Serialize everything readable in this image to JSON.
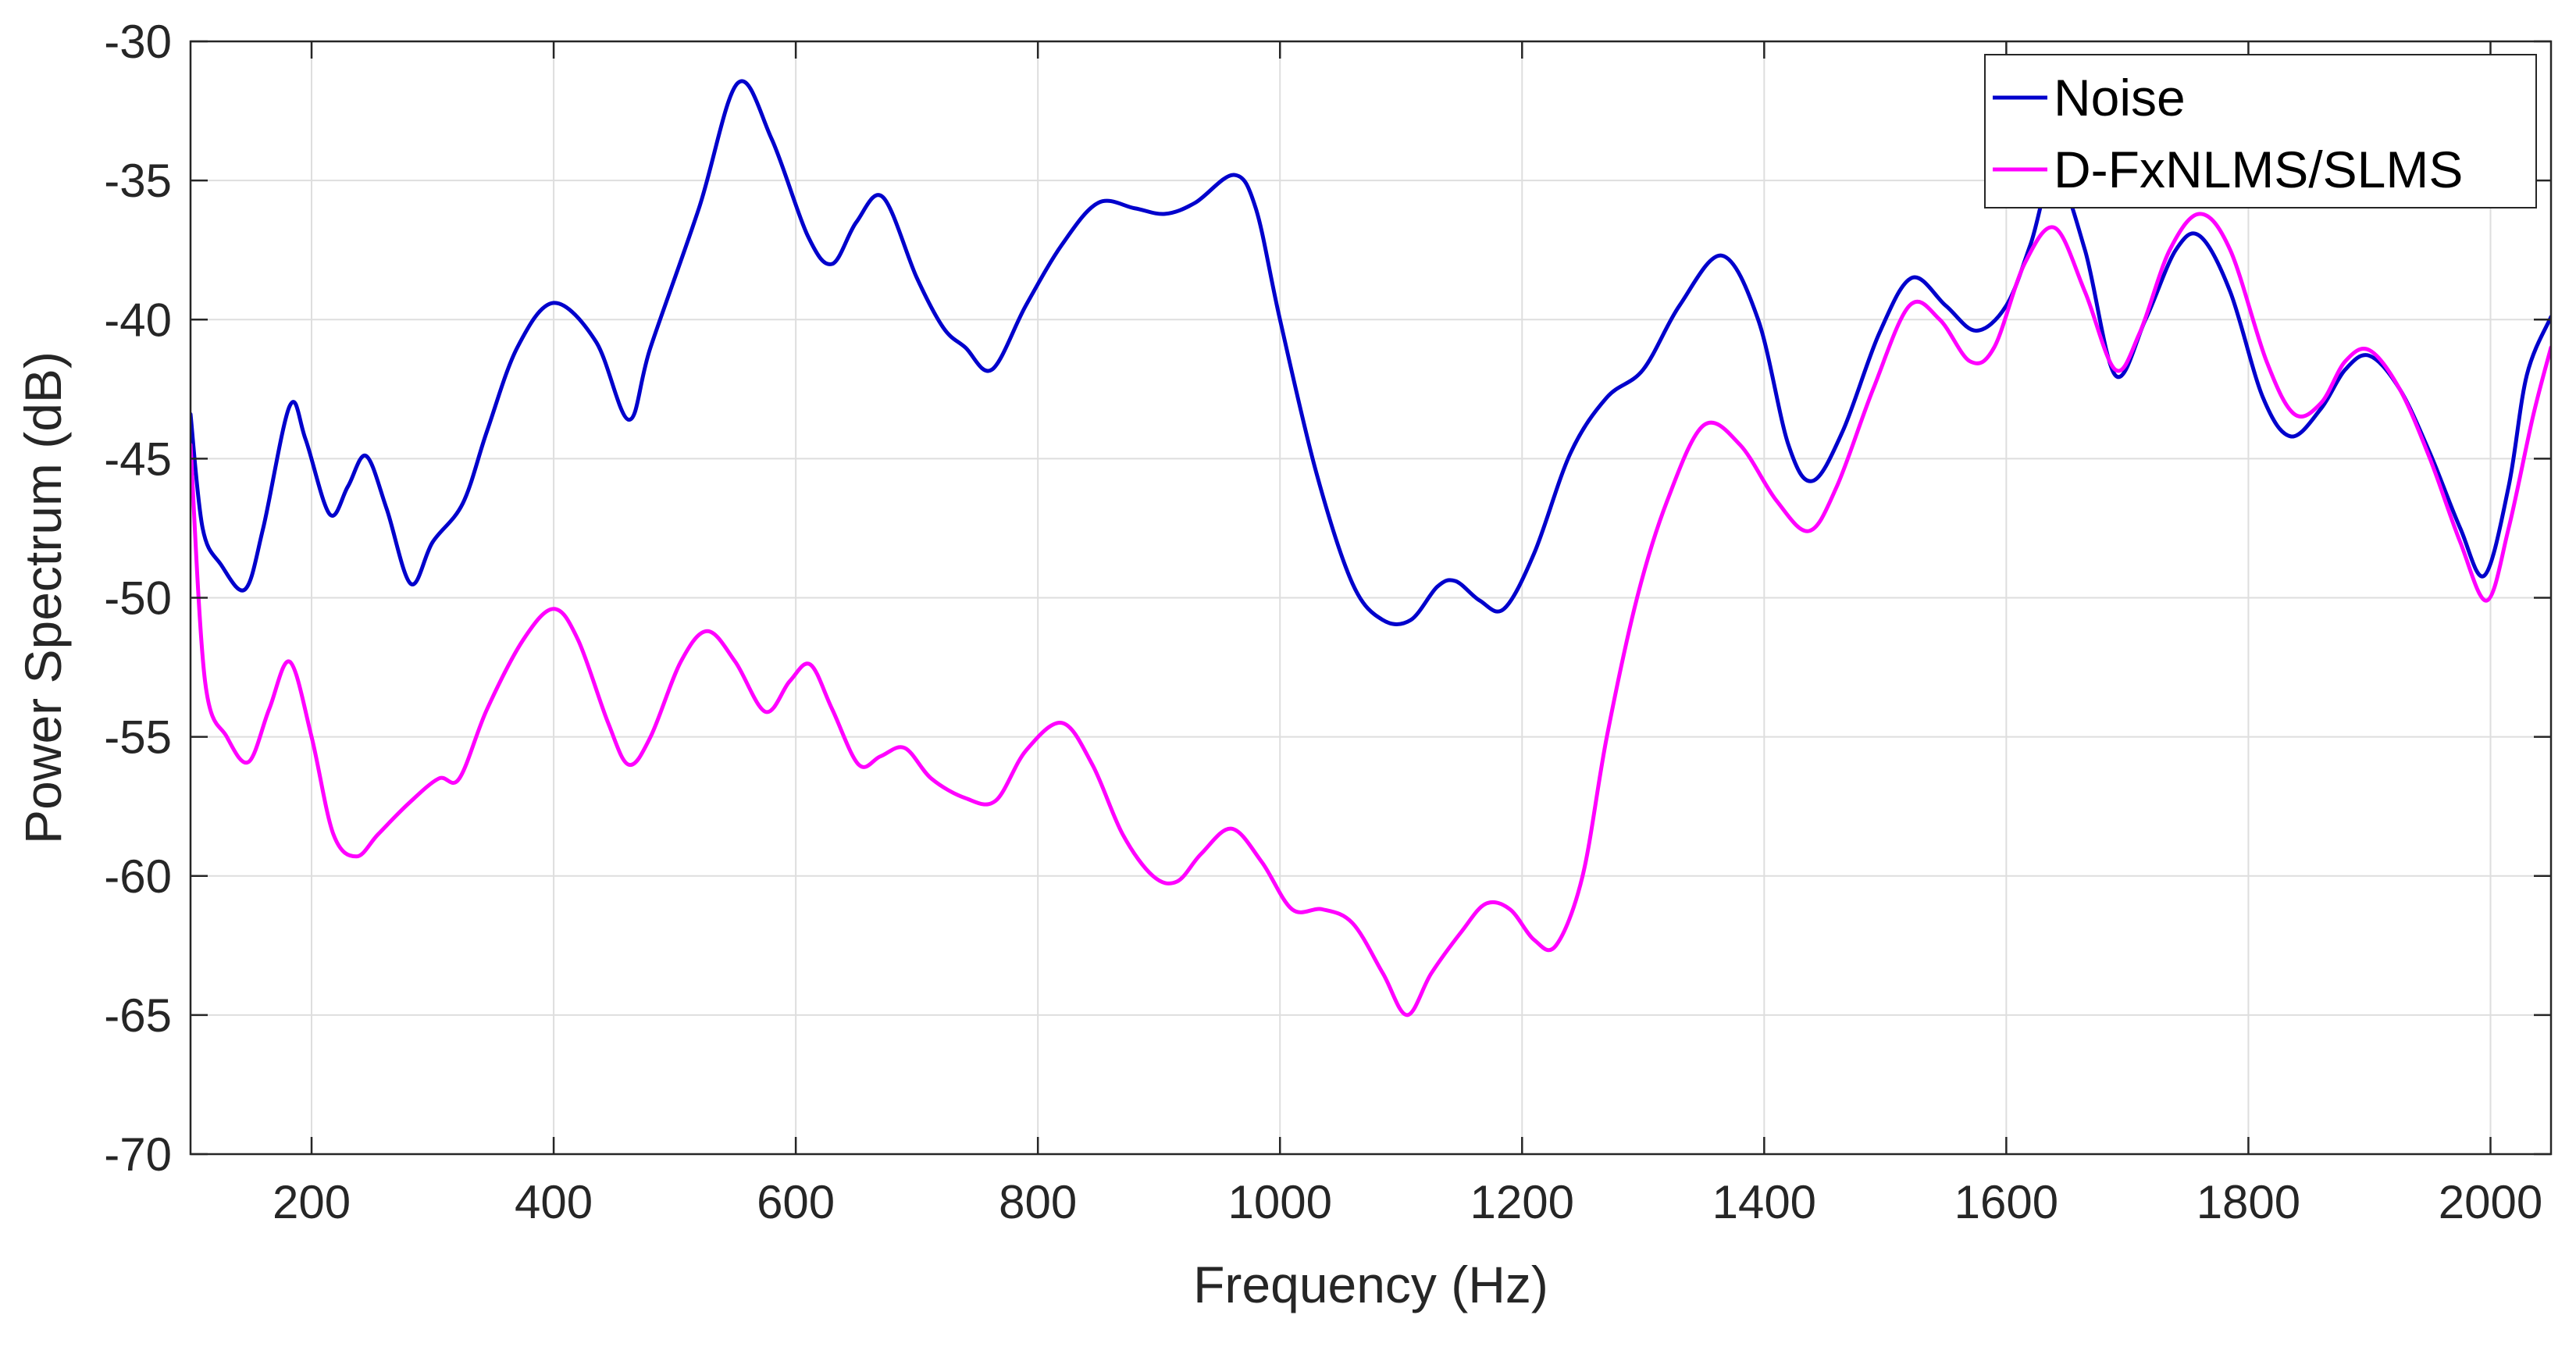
{
  "chart_data": {
    "type": "line",
    "title": "",
    "xlabel": "Frequency (Hz)",
    "ylabel": "Power Spectrum (dB)",
    "xlim": [
      100,
      2050
    ],
    "ylim": [
      -70,
      -30
    ],
    "xticks": [
      200,
      400,
      600,
      800,
      1000,
      1200,
      1400,
      1600,
      1800,
      2000
    ],
    "yticks": [
      -30,
      -35,
      -40,
      -45,
      -50,
      -55,
      -60,
      -65,
      -70
    ],
    "grid": true,
    "legend": {
      "position": "top-right"
    },
    "series": [
      {
        "name": "Noise",
        "color": "#0000cc",
        "points": [
          [
            100,
            -43.4
          ],
          [
            110,
            -47.5
          ],
          [
            125,
            -48.8
          ],
          [
            145,
            -49.7
          ],
          [
            160,
            -47.5
          ],
          [
            182,
            -43.1
          ],
          [
            195,
            -44.3
          ],
          [
            215,
            -47.0
          ],
          [
            230,
            -46.0
          ],
          [
            245,
            -44.9
          ],
          [
            262,
            -46.8
          ],
          [
            282,
            -49.5
          ],
          [
            300,
            -48.0
          ],
          [
            325,
            -46.6
          ],
          [
            345,
            -44.0
          ],
          [
            370,
            -41.0
          ],
          [
            400,
            -39.4
          ],
          [
            435,
            -40.8
          ],
          [
            462,
            -43.6
          ],
          [
            480,
            -41.0
          ],
          [
            520,
            -36.0
          ],
          [
            552,
            -31.5
          ],
          [
            580,
            -33.5
          ],
          [
            610,
            -37.0
          ],
          [
            630,
            -38.0
          ],
          [
            650,
            -36.5
          ],
          [
            672,
            -35.6
          ],
          [
            700,
            -38.5
          ],
          [
            722,
            -40.3
          ],
          [
            740,
            -41.0
          ],
          [
            762,
            -41.8
          ],
          [
            790,
            -39.5
          ],
          [
            820,
            -37.3
          ],
          [
            850,
            -35.8
          ],
          [
            880,
            -36.0
          ],
          [
            905,
            -36.2
          ],
          [
            930,
            -35.8
          ],
          [
            962,
            -34.8
          ],
          [
            980,
            -36.0
          ],
          [
            1000,
            -40.0
          ],
          [
            1030,
            -45.5
          ],
          [
            1060,
            -49.5
          ],
          [
            1085,
            -50.8
          ],
          [
            1108,
            -50.8
          ],
          [
            1130,
            -49.6
          ],
          [
            1145,
            -49.4
          ],
          [
            1165,
            -50.1
          ],
          [
            1185,
            -50.4
          ],
          [
            1210,
            -48.4
          ],
          [
            1240,
            -44.8
          ],
          [
            1270,
            -42.8
          ],
          [
            1300,
            -41.8
          ],
          [
            1330,
            -39.5
          ],
          [
            1365,
            -37.7
          ],
          [
            1395,
            -40.0
          ],
          [
            1420,
            -44.5
          ],
          [
            1440,
            -45.8
          ],
          [
            1465,
            -44.0
          ],
          [
            1495,
            -40.5
          ],
          [
            1522,
            -38.5
          ],
          [
            1550,
            -39.5
          ],
          [
            1575,
            -40.4
          ],
          [
            1600,
            -39.5
          ],
          [
            1620,
            -37.3
          ],
          [
            1640,
            -34.7
          ],
          [
            1665,
            -37.5
          ],
          [
            1690,
            -42.0
          ],
          [
            1715,
            -40.0
          ],
          [
            1740,
            -37.5
          ],
          [
            1760,
            -37.0
          ],
          [
            1785,
            -39.0
          ],
          [
            1812,
            -42.8
          ],
          [
            1835,
            -44.2
          ],
          [
            1860,
            -43.2
          ],
          [
            1880,
            -41.8
          ],
          [
            1900,
            -41.3
          ],
          [
            1925,
            -42.5
          ],
          [
            1950,
            -44.8
          ],
          [
            1975,
            -47.5
          ],
          [
            1995,
            -49.2
          ],
          [
            2015,
            -46.0
          ],
          [
            2030,
            -42.0
          ],
          [
            2050,
            -39.9
          ]
        ]
      },
      {
        "name": "D-FxNLMS/SLMS",
        "color": "#ff00ff",
        "points": [
          [
            100,
            -44.5
          ],
          [
            112,
            -53.0
          ],
          [
            130,
            -55.0
          ],
          [
            148,
            -55.9
          ],
          [
            165,
            -54.0
          ],
          [
            182,
            -52.3
          ],
          [
            200,
            -55.0
          ],
          [
            218,
            -58.5
          ],
          [
            237,
            -59.3
          ],
          [
            255,
            -58.5
          ],
          [
            280,
            -57.4
          ],
          [
            305,
            -56.5
          ],
          [
            322,
            -56.5
          ],
          [
            345,
            -54.0
          ],
          [
            375,
            -51.5
          ],
          [
            400,
            -50.4
          ],
          [
            420,
            -51.5
          ],
          [
            445,
            -54.5
          ],
          [
            462,
            -56.0
          ],
          [
            480,
            -55.0
          ],
          [
            505,
            -52.3
          ],
          [
            527,
            -51.2
          ],
          [
            550,
            -52.3
          ],
          [
            575,
            -54.1
          ],
          [
            595,
            -53.0
          ],
          [
            612,
            -52.4
          ],
          [
            630,
            -54.0
          ],
          [
            652,
            -56.0
          ],
          [
            670,
            -55.7
          ],
          [
            690,
            -55.4
          ],
          [
            712,
            -56.5
          ],
          [
            740,
            -57.2
          ],
          [
            765,
            -57.3
          ],
          [
            790,
            -55.5
          ],
          [
            820,
            -54.5
          ],
          [
            845,
            -56.0
          ],
          [
            870,
            -58.5
          ],
          [
            895,
            -60.0
          ],
          [
            915,
            -60.2
          ],
          [
            935,
            -59.2
          ],
          [
            960,
            -58.3
          ],
          [
            985,
            -59.5
          ],
          [
            1010,
            -61.2
          ],
          [
            1035,
            -61.2
          ],
          [
            1060,
            -61.7
          ],
          [
            1085,
            -63.5
          ],
          [
            1105,
            -65.0
          ],
          [
            1125,
            -63.5
          ],
          [
            1150,
            -62.0
          ],
          [
            1170,
            -61.0
          ],
          [
            1190,
            -61.2
          ],
          [
            1210,
            -62.3
          ],
          [
            1228,
            -62.5
          ],
          [
            1250,
            -60.0
          ],
          [
            1270,
            -55.0
          ],
          [
            1295,
            -50.0
          ],
          [
            1320,
            -46.5
          ],
          [
            1350,
            -43.8
          ],
          [
            1380,
            -44.5
          ],
          [
            1410,
            -46.5
          ],
          [
            1437,
            -47.6
          ],
          [
            1460,
            -46.0
          ],
          [
            1490,
            -42.5
          ],
          [
            1520,
            -39.5
          ],
          [
            1545,
            -40.0
          ],
          [
            1570,
            -41.5
          ],
          [
            1590,
            -41.0
          ],
          [
            1615,
            -38.0
          ],
          [
            1640,
            -36.7
          ],
          [
            1665,
            -39.0
          ],
          [
            1690,
            -41.8
          ],
          [
            1710,
            -40.5
          ],
          [
            1735,
            -37.5
          ],
          [
            1760,
            -36.2
          ],
          [
            1785,
            -37.5
          ],
          [
            1815,
            -41.5
          ],
          [
            1838,
            -43.4
          ],
          [
            1860,
            -43.0
          ],
          [
            1880,
            -41.5
          ],
          [
            1900,
            -41.1
          ],
          [
            1925,
            -42.5
          ],
          [
            1950,
            -45.0
          ],
          [
            1975,
            -48.0
          ],
          [
            1997,
            -50.1
          ],
          [
            2015,
            -47.5
          ],
          [
            2035,
            -43.5
          ],
          [
            2050,
            -41.0
          ]
        ]
      }
    ]
  }
}
